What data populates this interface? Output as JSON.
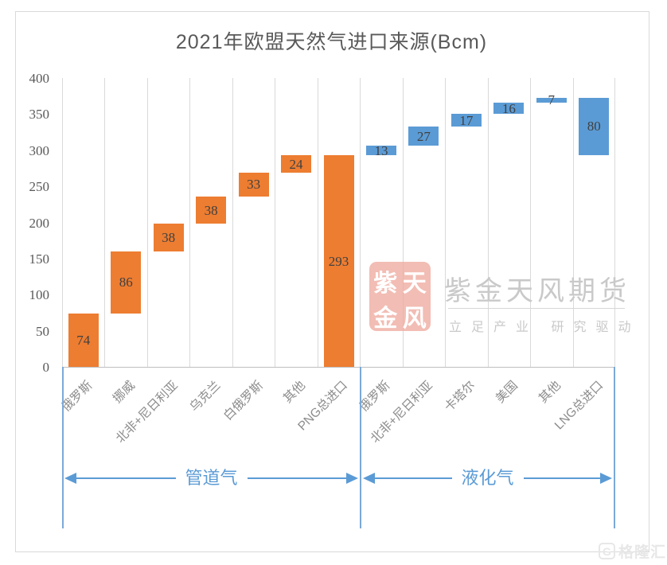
{
  "title": "2021年欧盟天然气进口来源(Bcm)",
  "chart_data": {
    "type": "bar",
    "subtype": "waterfall",
    "title": "2021年欧盟天然气进口来源(Bcm)",
    "ylim": [
      0,
      400
    ],
    "yticks": [
      0,
      50,
      100,
      150,
      200,
      250,
      300,
      350,
      400
    ],
    "grid": "vertical-only",
    "categories": [
      "俄罗斯",
      "挪威",
      "北非+尼日利亚",
      "乌克兰",
      "白俄罗斯",
      "其他",
      "PNG总进口",
      "俄罗斯",
      "北非+尼日利亚",
      "卡塔尔",
      "美国",
      "其他",
      "LNG总进口"
    ],
    "bars": [
      {
        "label": "俄罗斯",
        "value": 74,
        "start": 0,
        "group": "pipeline"
      },
      {
        "label": "挪威",
        "value": 86,
        "start": 74,
        "group": "pipeline"
      },
      {
        "label": "北非+尼日利亚",
        "value": 38,
        "start": 160,
        "group": "pipeline"
      },
      {
        "label": "乌克兰",
        "value": 38,
        "start": 198,
        "group": "pipeline"
      },
      {
        "label": "白俄罗斯",
        "value": 33,
        "start": 236,
        "group": "pipeline"
      },
      {
        "label": "其他",
        "value": 24,
        "start": 269,
        "group": "pipeline"
      },
      {
        "label": "PNG总进口",
        "value": 293,
        "start": 0,
        "group": "pipeline"
      },
      {
        "label": "俄罗斯",
        "value": 13,
        "start": 293,
        "group": "lng"
      },
      {
        "label": "北非+尼日利亚",
        "value": 27,
        "start": 306,
        "group": "lng"
      },
      {
        "label": "卡塔尔",
        "value": 17,
        "start": 333,
        "group": "lng"
      },
      {
        "label": "美国",
        "value": 16,
        "start": 350,
        "group": "lng"
      },
      {
        "label": "其他",
        "value": 7,
        "start": 366,
        "group": "lng"
      },
      {
        "label": "LNG总进口",
        "value": 80,
        "start": 293,
        "group": "lng"
      }
    ],
    "colors": {
      "pipeline": "#ED7D31",
      "lng": "#5B9BD5",
      "annotation": "#5B9BD5"
    },
    "annotations": {
      "pipeline_label": "管道气",
      "lng_label": "液化气",
      "pipeline_span_categories": [
        0,
        6
      ],
      "lng_span_categories": [
        7,
        12
      ]
    }
  },
  "watermark": {
    "seal_chars": {
      "c1": "紫",
      "c2": "天",
      "c3": "金",
      "c4": "风"
    },
    "brand": "紫金天风期货",
    "slogan": "立足产业 研究驱动",
    "seal_color": "#EFADA2",
    "text_color": "#C9C9C9"
  },
  "footer": {
    "logo_glyph": "G",
    "logo_text": "格隆汇"
  }
}
